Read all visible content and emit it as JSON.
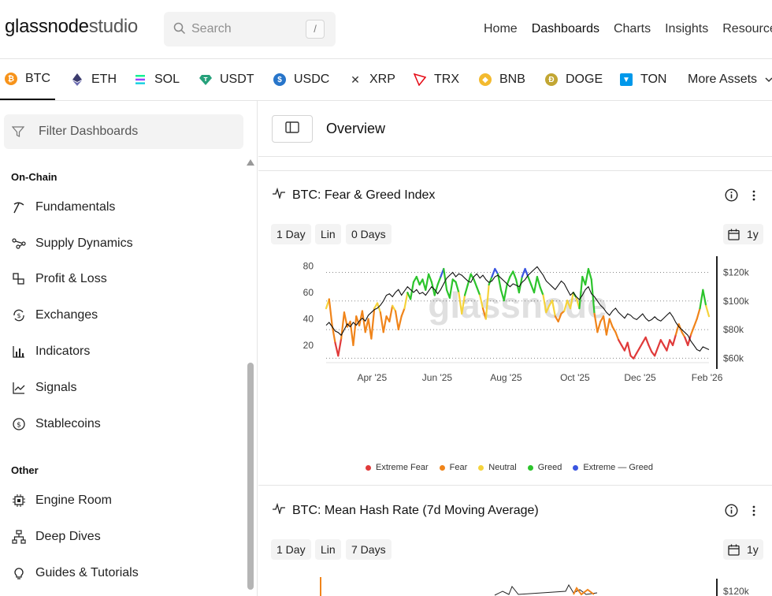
{
  "header": {
    "logo_bold": "glassnode",
    "logo_light": "studio",
    "search_placeholder": "Search",
    "search_shortcut": "/",
    "nav": [
      "Home",
      "Dashboards",
      "Charts",
      "Insights",
      "Resource"
    ]
  },
  "assets": [
    {
      "label": "BTC",
      "icon": "btc-icon",
      "color": "#f7931a"
    },
    {
      "label": "ETH",
      "icon": "eth-icon",
      "color": "#3c3c6e"
    },
    {
      "label": "SOL",
      "icon": "sol-icon",
      "color": "#9945ff"
    },
    {
      "label": "USDT",
      "icon": "usdt-icon",
      "color": "#26a17b"
    },
    {
      "label": "USDC",
      "icon": "usdc-icon",
      "color": "#2775ca"
    },
    {
      "label": "XRP",
      "icon": "xrp-icon",
      "color": "#333333"
    },
    {
      "label": "TRX",
      "icon": "trx-icon",
      "color": "#e50914"
    },
    {
      "label": "BNB",
      "icon": "bnb-icon",
      "color": "#f3ba2f"
    },
    {
      "label": "DOGE",
      "icon": "doge-icon",
      "color": "#c2a633"
    },
    {
      "label": "TON",
      "icon": "ton-icon",
      "color": "#0098ea"
    },
    {
      "label": "More Assets",
      "icon": "chevron-down-icon",
      "color": "#333333"
    }
  ],
  "sidebar": {
    "filter_placeholder": "Filter Dashboards",
    "sections": [
      {
        "title": "On-Chain",
        "items": [
          {
            "label": "Fundamentals",
            "icon": "pickaxe-icon"
          },
          {
            "label": "Supply Dynamics",
            "icon": "network-icon"
          },
          {
            "label": "Profit & Loss",
            "icon": "blocks-icon"
          },
          {
            "label": "Exchanges",
            "icon": "exchange-icon"
          },
          {
            "label": "Indicators",
            "icon": "bar-chart-icon"
          },
          {
            "label": "Signals",
            "icon": "line-chart-icon"
          },
          {
            "label": "Stablecoins",
            "icon": "dollar-coin-icon"
          }
        ]
      },
      {
        "title": "Other",
        "items": [
          {
            "label": "Engine Room",
            "icon": "chip-icon"
          },
          {
            "label": "Deep Dives",
            "icon": "sitemap-icon"
          },
          {
            "label": "Guides & Tutorials",
            "icon": "lightbulb-icon"
          }
        ]
      }
    ]
  },
  "main": {
    "title": "Overview",
    "cards": [
      {
        "title": "BTC: Fear & Greed Index",
        "chips": [
          "1 Day",
          "Lin",
          "0 Days"
        ],
        "range": "1y",
        "watermark": "glassnode"
      },
      {
        "title": "BTC: Mean Hash Rate (7d Moving Average)",
        "chips": [
          "1 Day",
          "Lin",
          "7 Days"
        ],
        "range": "1y",
        "y_right_top_label": "$120k"
      }
    ]
  },
  "chart_data": {
    "type": "line",
    "title": "BTC: Fear & Greed Index",
    "x_ticks": [
      "Apr '25",
      "Jun '25",
      "Aug '25",
      "Oct '25",
      "Dec '25",
      "Feb '26"
    ],
    "y_left_ticks": [
      20,
      40,
      60,
      80
    ],
    "y_right_ticks": [
      "$60k",
      "$80k",
      "$100k",
      "$120k"
    ],
    "ylim": [
      8,
      84
    ],
    "y_right_lim": [
      58000,
      128000
    ],
    "legend": [
      {
        "name": "Extreme Fear",
        "color": "#e03a3a"
      },
      {
        "name": "Fear",
        "color": "#f0841a"
      },
      {
        "name": "Neutral",
        "color": "#f5d33b"
      },
      {
        "name": "Greed",
        "color": "#2cc42c"
      },
      {
        "name": "Extreme — Greed",
        "color": "#3a55e0"
      }
    ],
    "fg_index": [
      48,
      55,
      35,
      22,
      12,
      25,
      45,
      34,
      38,
      20,
      42,
      35,
      46,
      30,
      40,
      25,
      48,
      52,
      45,
      30,
      42,
      38,
      50,
      46,
      32,
      42,
      48,
      60,
      55,
      68,
      72,
      66,
      70,
      62,
      74,
      68,
      58,
      66,
      72,
      78,
      62,
      56,
      70,
      68,
      60,
      44,
      58,
      66,
      74,
      70,
      64,
      58,
      48,
      40,
      66,
      72,
      78,
      74,
      62,
      54,
      66,
      72,
      76,
      70,
      60,
      72,
      78,
      72,
      66,
      60,
      72,
      64,
      58,
      45,
      50,
      54,
      42,
      38,
      44,
      46,
      54,
      48,
      60,
      56,
      48,
      72,
      66,
      78,
      70,
      44,
      30,
      38,
      42,
      28,
      40,
      34,
      30,
      24,
      20,
      16,
      22,
      12,
      10,
      14,
      18,
      22,
      26,
      20,
      15,
      12,
      18,
      24,
      20,
      16,
      24,
      20,
      28,
      36,
      30,
      26,
      20,
      28,
      34,
      40,
      48,
      62,
      50,
      42
    ],
    "btc_price": [
      83,
      85,
      82,
      79,
      78,
      76,
      80,
      84,
      82,
      85,
      83,
      86,
      88,
      86,
      90,
      92,
      94,
      95,
      97,
      100,
      104,
      105,
      103,
      106,
      108,
      104,
      107,
      110,
      108,
      106,
      108,
      105,
      106,
      104,
      107,
      110,
      108,
      105,
      108,
      112,
      116,
      118,
      120,
      117,
      119,
      118,
      116,
      114,
      113,
      117,
      119,
      116,
      118,
      115,
      113,
      114,
      117,
      118,
      116,
      114,
      112,
      110,
      112,
      111,
      110,
      113,
      115,
      118,
      120,
      122,
      124,
      121,
      118,
      114,
      112,
      110,
      108,
      111,
      114,
      112,
      108,
      104,
      106,
      103,
      101,
      104,
      108,
      110,
      105,
      103,
      100,
      97,
      95,
      92,
      90,
      93,
      95,
      92,
      90,
      88,
      91,
      90,
      88,
      87,
      89,
      91,
      88,
      86,
      87,
      89,
      87,
      86,
      88,
      90,
      92,
      89,
      85,
      82,
      80,
      78,
      76,
      72,
      69,
      66,
      65,
      68,
      67,
      66
    ]
  }
}
